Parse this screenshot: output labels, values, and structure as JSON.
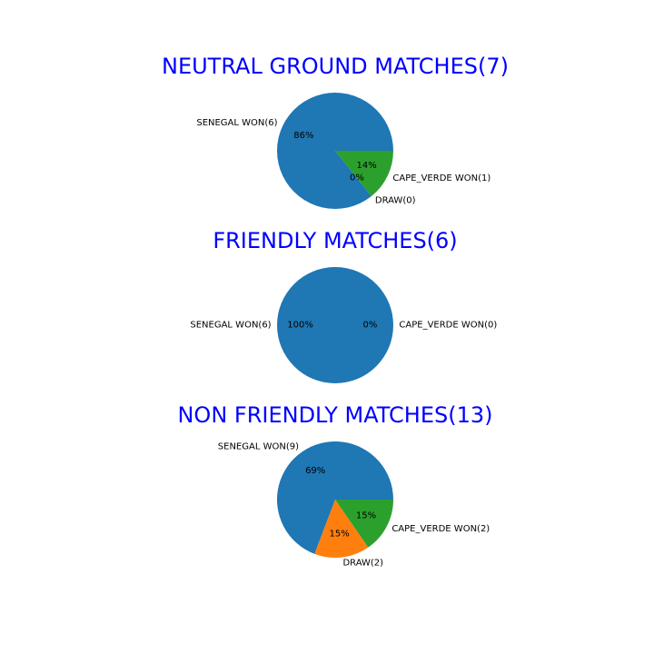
{
  "title_color": "#0000ff",
  "colors": {
    "senegal": "#1f77b4",
    "draw": "#ff7f0e",
    "cape_verde": "#2ca02c"
  },
  "chart_data": [
    {
      "type": "pie",
      "title": "NEUTRAL GROUND MATCHES(7)",
      "labels": [
        "SENEGAL WON(6)",
        "DRAW(0)",
        "CAPE_VERDE WON(1)"
      ],
      "values": [
        6,
        0,
        1
      ],
      "pct_labels": [
        "86%",
        "0%",
        "14%"
      ],
      "color_keys": [
        "senegal",
        "draw",
        "cape_verde"
      ]
    },
    {
      "type": "pie",
      "title": "FRIENDLY MATCHES(6)",
      "labels": [
        "SENEGAL WON(6)",
        "CAPE_VERDE WON(0)"
      ],
      "values": [
        6,
        0
      ],
      "pct_labels": [
        "100%",
        "0%"
      ],
      "color_keys": [
        "senegal",
        "cape_verde"
      ]
    },
    {
      "type": "pie",
      "title": "NON FRIENDLY MATCHES(13)",
      "labels": [
        "SENEGAL WON(9)",
        "DRAW(2)",
        "CAPE_VERDE WON(2)"
      ],
      "values": [
        9,
        2,
        2
      ],
      "pct_labels": [
        "69%",
        "15%",
        "15%"
      ],
      "color_keys": [
        "senegal",
        "draw",
        "cape_verde"
      ]
    }
  ]
}
